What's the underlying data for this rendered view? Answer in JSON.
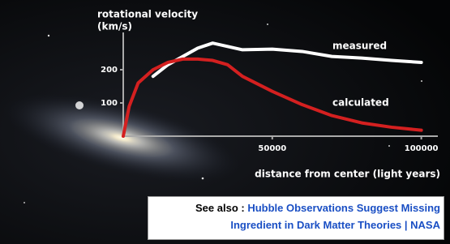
{
  "chart_data": {
    "type": "line",
    "y_label": "rotational velocity",
    "y_unit": "(km/s)",
    "x_label": "distance from center (light years)",
    "x": [
      0,
      2000,
      5000,
      10000,
      15000,
      20000,
      25000,
      30000,
      35000,
      40000,
      50000,
      60000,
      70000,
      80000,
      90000,
      100000
    ],
    "series": [
      {
        "name": "measured",
        "color": "#ffffff",
        "values": [
          null,
          null,
          null,
          180,
          215,
          240,
          265,
          280,
          270,
          260,
          262,
          255,
          240,
          235,
          228,
          222
        ]
      },
      {
        "name": "calculated",
        "color": "#d42020",
        "values": [
          0,
          90,
          160,
          200,
          222,
          232,
          232,
          228,
          215,
          180,
          135,
          95,
          62,
          40,
          27,
          18
        ]
      }
    ],
    "xlim": [
      0,
      105000
    ],
    "ylim": [
      0,
      300
    ],
    "xticks": [
      50000,
      100000
    ],
    "yticks": [
      100,
      200
    ]
  },
  "see_also": {
    "prefix": "See also :",
    "link": "Hubble Observations Suggest Missing Ingredient in Dark Matter Theories | NASA"
  }
}
